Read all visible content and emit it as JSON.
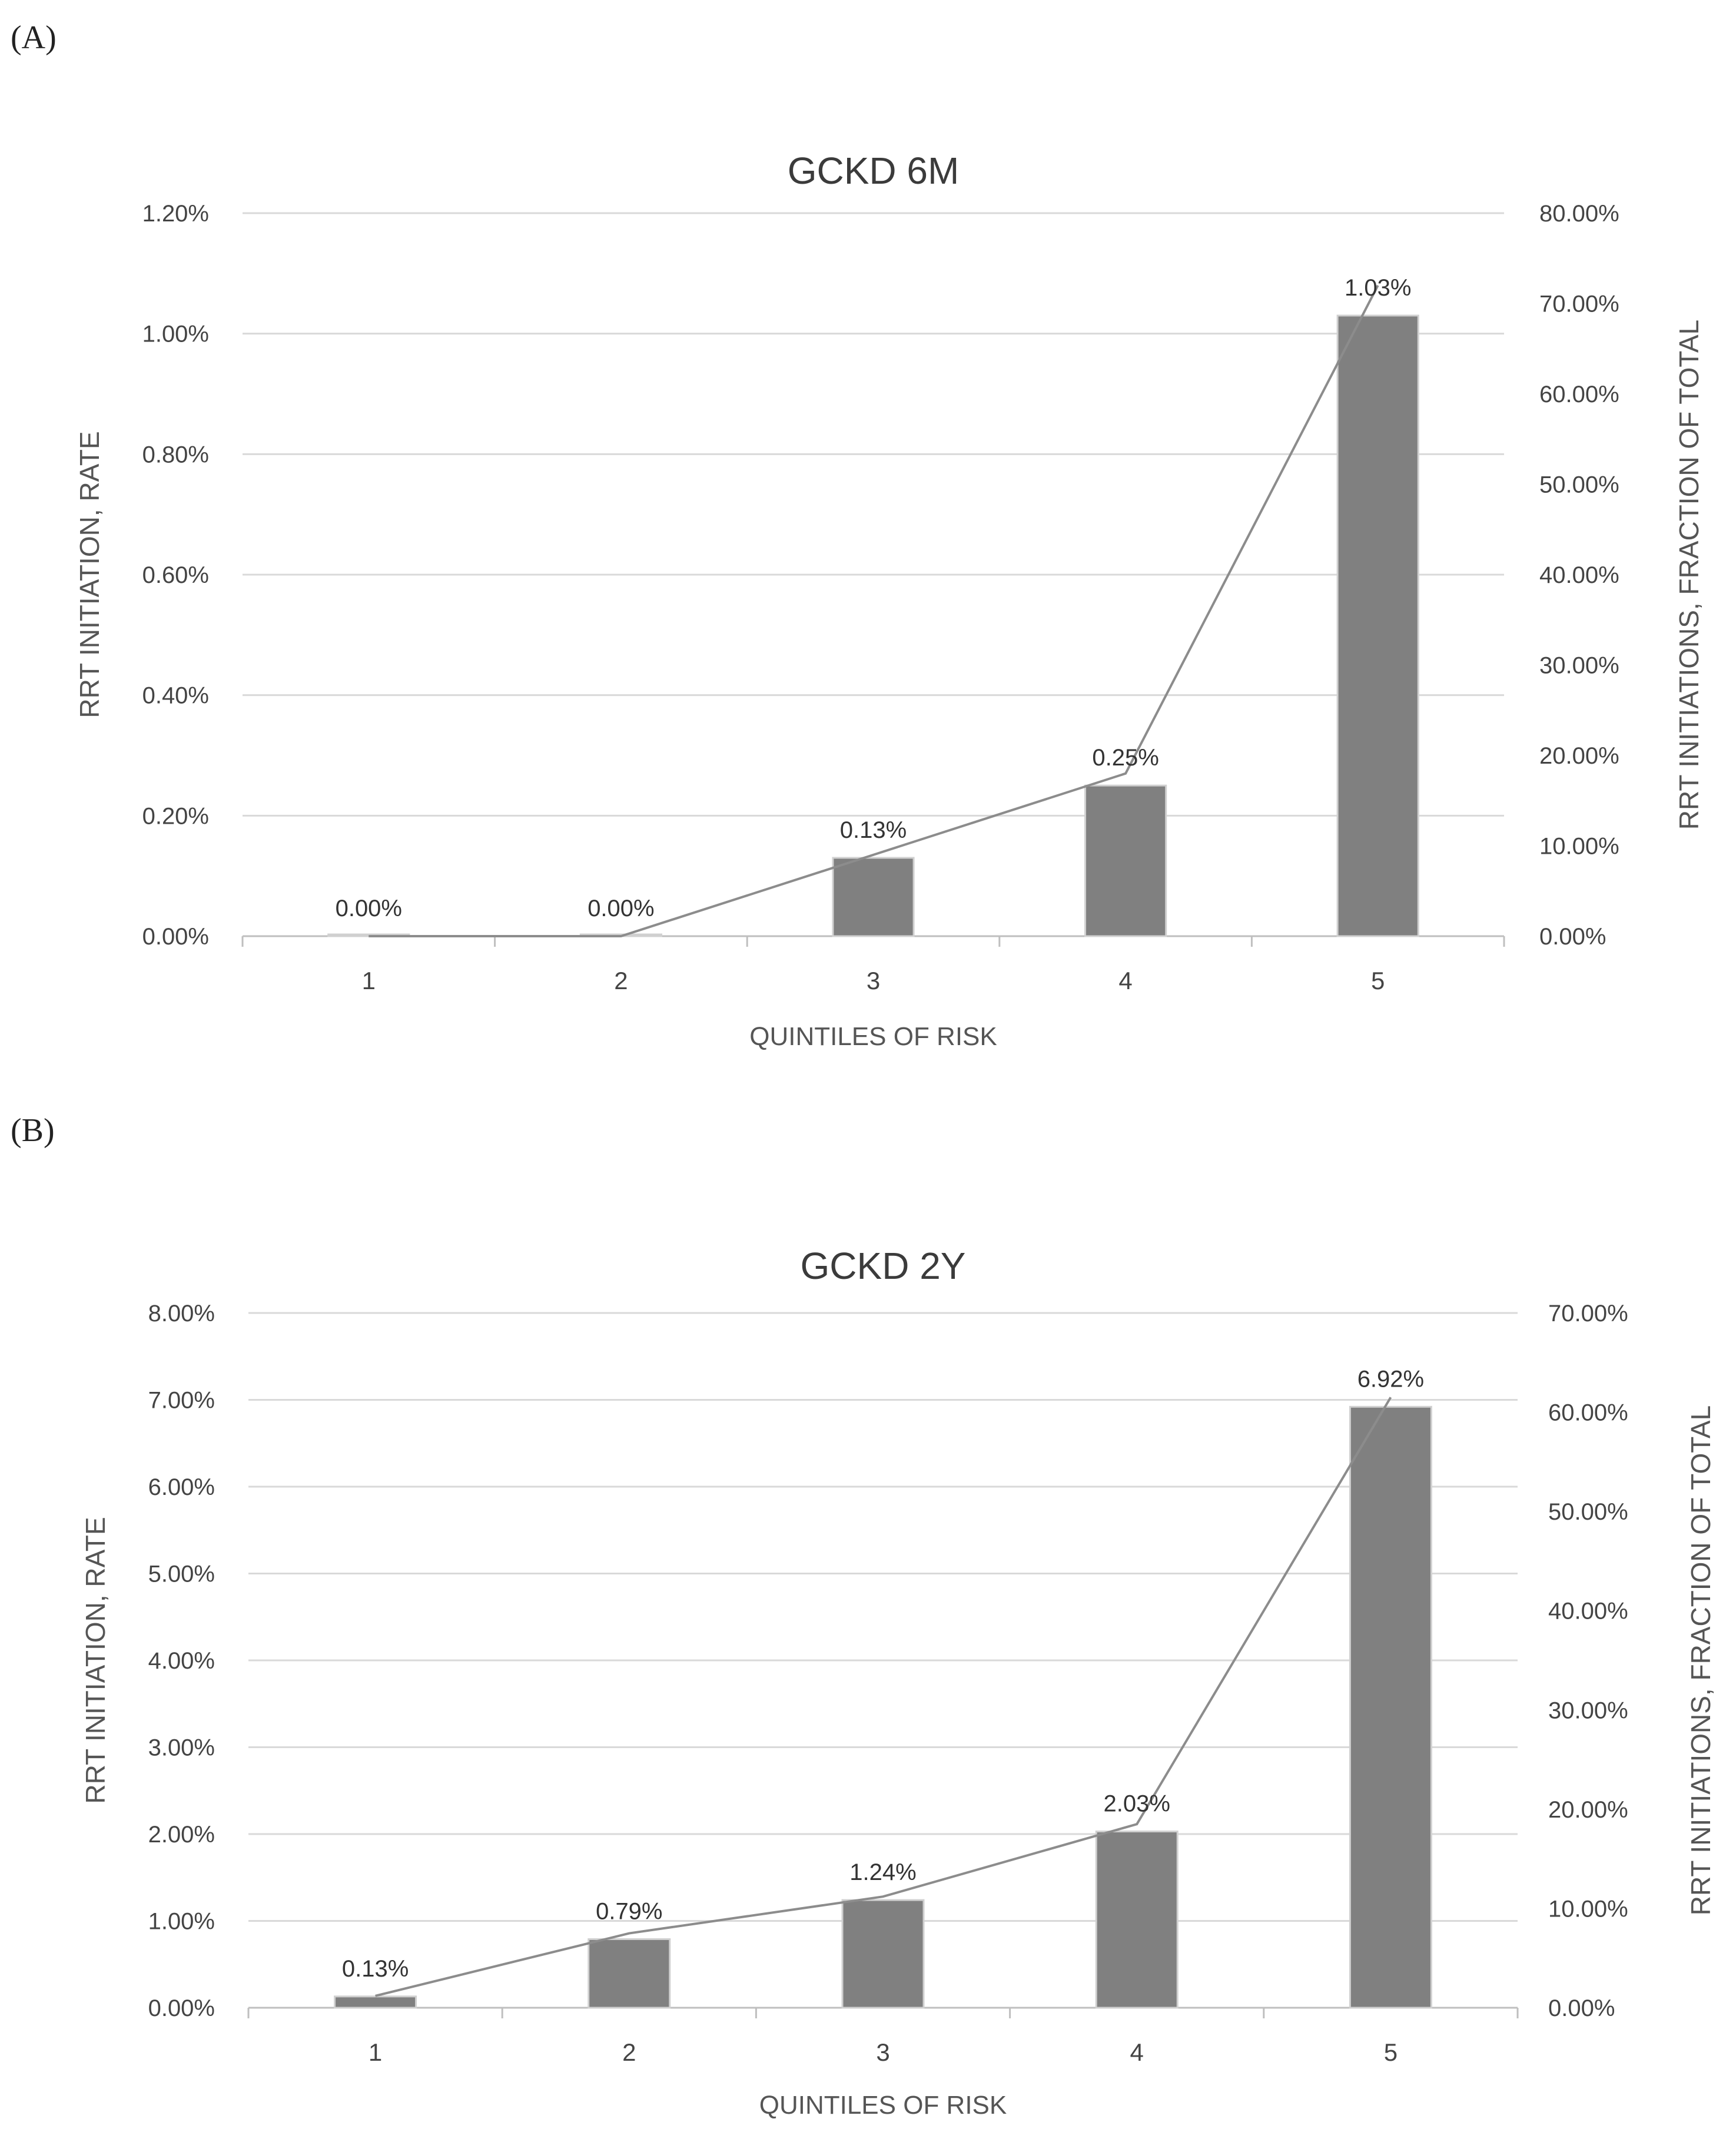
{
  "panels": [
    {
      "label": "(A)",
      "chart_data": {
        "type": "bar",
        "title": "GCKD 6M",
        "xlabel": "QUINTILES OF RISK",
        "ylabel": "RRT INITIATION, RATE",
        "y2label": "RRT INITIATIONS, FRACTION OF TOTAL",
        "categories": [
          "1",
          "2",
          "3",
          "4",
          "5"
        ],
        "ylim": [
          0,
          1.2
        ],
        "yticks": [
          0,
          0.2,
          0.4,
          0.6,
          0.8,
          1.0,
          1.2
        ],
        "ytick_labels": [
          "0.00%",
          "0.20%",
          "0.40%",
          "0.60%",
          "0.80%",
          "1.00%",
          "1.20%"
        ],
        "y2lim": [
          0,
          80
        ],
        "y2ticks": [
          0,
          10,
          20,
          30,
          40,
          50,
          60,
          70,
          80
        ],
        "y2tick_labels": [
          "0.00%",
          "10.00%",
          "20.00%",
          "30.00%",
          "40.00%",
          "50.00%",
          "60.00%",
          "70.00%",
          "80.00%"
        ],
        "series": [
          {
            "name": "RRT initiation, rate",
            "kind": "bar",
            "axis": "left",
            "values": [
              0.0,
              0.0,
              0.13,
              0.25,
              1.03
            ],
            "labels": [
              "0.00%",
              "0.00%",
              "0.13%",
              "0.25%",
              "1.03%"
            ]
          },
          {
            "name": "RRT initiations, fraction of total",
            "kind": "line",
            "axis": "right",
            "values": [
              0.0,
              0.0,
              9.0,
              18.0,
              72.0
            ]
          }
        ],
        "colors": {
          "bar": "#808080",
          "line": "#8c8c8c",
          "grid": "#d9d9d9"
        }
      }
    },
    {
      "label": "(B)",
      "chart_data": {
        "type": "bar",
        "title": "GCKD 2Y",
        "xlabel": "QUINTILES OF RISK",
        "ylabel": "RRT INITIATION, RATE",
        "y2label": "RRT INITIATIONS, FRACTION OF TOTAL",
        "categories": [
          "1",
          "2",
          "3",
          "4",
          "5"
        ],
        "ylim": [
          0,
          8
        ],
        "yticks": [
          0,
          1,
          2,
          3,
          4,
          5,
          6,
          7,
          8
        ],
        "ytick_labels": [
          "0.00%",
          "1.00%",
          "2.00%",
          "3.00%",
          "4.00%",
          "5.00%",
          "6.00%",
          "7.00%",
          "8.00%"
        ],
        "y2lim": [
          0,
          70
        ],
        "y2ticks": [
          0,
          10,
          20,
          30,
          40,
          50,
          60,
          70
        ],
        "y2tick_labels": [
          "0.00%",
          "10.00%",
          "20.00%",
          "30.00%",
          "40.00%",
          "50.00%",
          "60.00%",
          "70.00%"
        ],
        "series": [
          {
            "name": "RRT initiation, rate",
            "kind": "bar",
            "axis": "left",
            "values": [
              0.13,
              0.79,
              1.24,
              2.03,
              6.92
            ],
            "labels": [
              "0.13%",
              "0.79%",
              "1.24%",
              "2.03%",
              "6.92%"
            ]
          },
          {
            "name": "RRT initiations, fraction of total",
            "kind": "line",
            "axis": "right",
            "values": [
              1.2,
              7.5,
              11.2,
              18.5,
              61.5
            ]
          }
        ],
        "colors": {
          "bar": "#808080",
          "line": "#8c8c8c",
          "grid": "#d9d9d9"
        }
      }
    }
  ]
}
